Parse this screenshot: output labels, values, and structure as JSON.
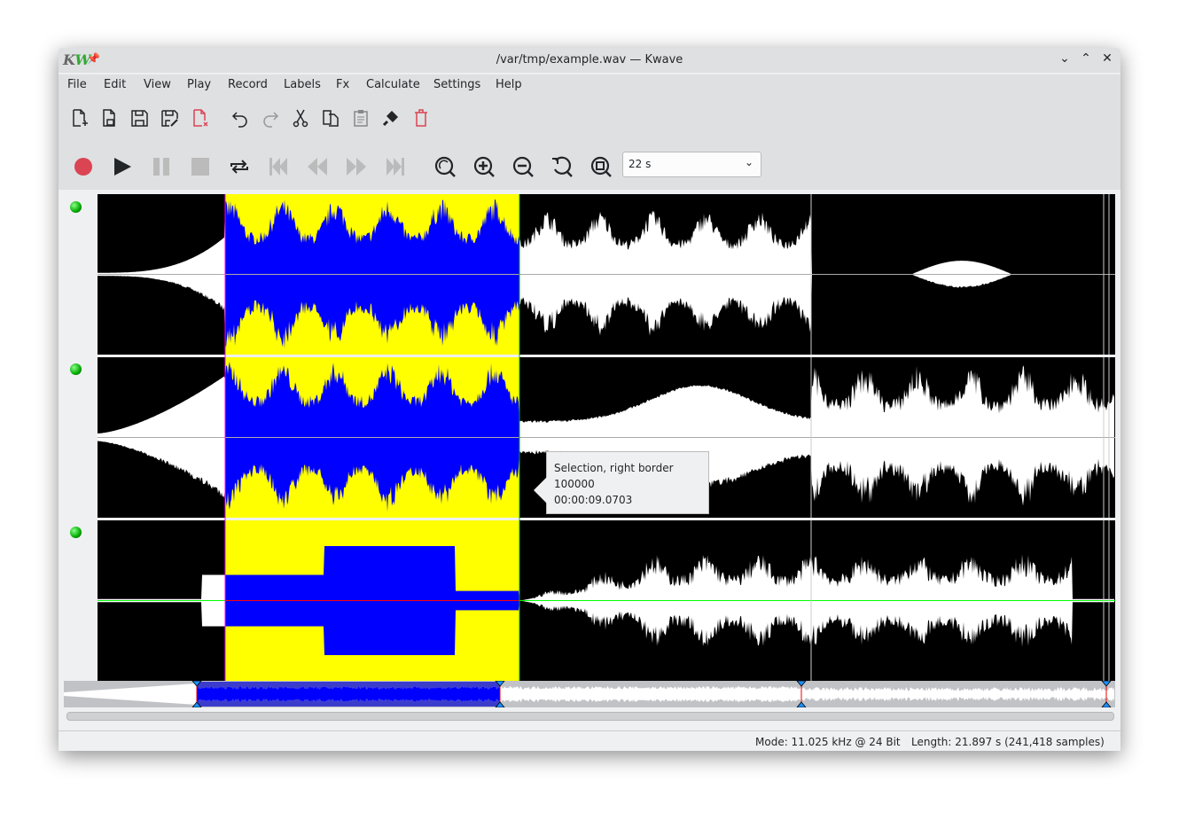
{
  "window": {
    "title": "/var/tmp/example.wav — Kwave",
    "logo": "KW"
  },
  "menu": [
    "File",
    "Edit",
    "View",
    "Play",
    "Record",
    "Labels",
    "Fx",
    "Calculate",
    "Settings",
    "Help"
  ],
  "toolbar": {
    "file_icons": [
      "new-file-icon",
      "open-file-icon",
      "save-icon",
      "save-as-icon",
      "close-file-icon",
      "undo-icon",
      "redo-icon",
      "cut-icon",
      "copy-icon",
      "paste-icon",
      "erase-icon",
      "delete-icon"
    ],
    "transport_icons": [
      "record-icon",
      "play-icon",
      "pause-icon",
      "stop-icon",
      "loop-icon",
      "rewind-to-start-icon",
      "rewind-icon",
      "forward-icon",
      "forward-to-end-icon",
      "zoom-to-selection-icon",
      "zoom-in-icon",
      "zoom-out-icon",
      "zoom-original-icon",
      "zoom-all-icon"
    ],
    "zoom_value": "22 s"
  },
  "tooltip": {
    "line1": "Selection, right border",
    "line2": "100000",
    "line3": "00:00:09.0703"
  },
  "status": {
    "mode": "Mode: 11.025 kHz @ 24 Bit",
    "length": "Length: 21.897 s (241,418 samples)"
  },
  "colors": {
    "selection_bg": "#ffff00",
    "selection_wave": "#0000ff",
    "wave": "#ffffff",
    "background": "#000000",
    "accent_record": "#da4453"
  }
}
